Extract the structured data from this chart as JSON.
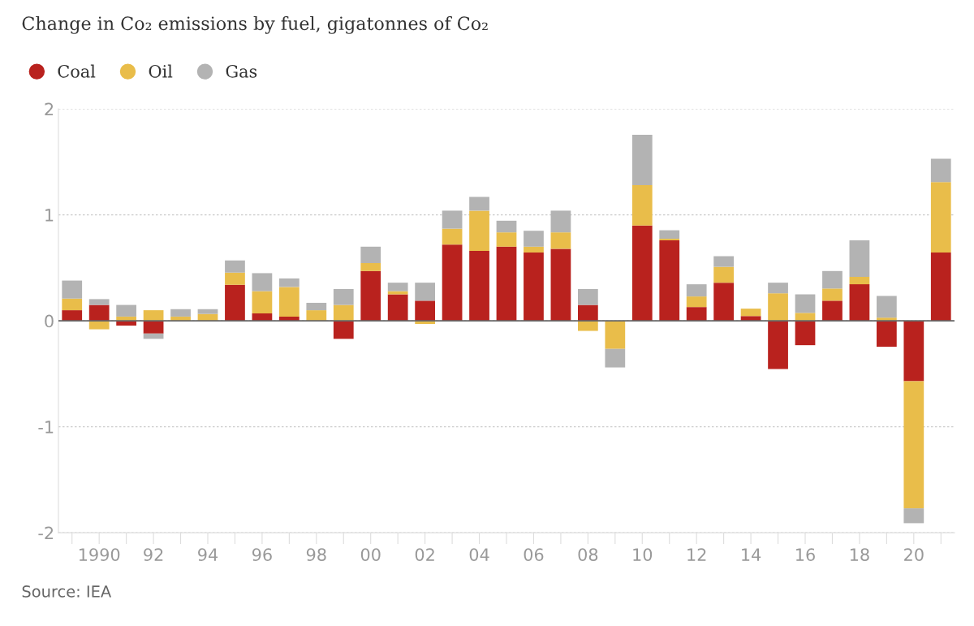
{
  "chart_data": {
    "type": "bar",
    "title": "Change in Co₂ emissions by fuel, gigatonnes of Co₂",
    "stacked": true,
    "categories": [
      null,
      "1990",
      null,
      "92",
      null,
      "94",
      null,
      "96",
      null,
      "98",
      null,
      "00",
      null,
      "02",
      null,
      "04",
      null,
      "06",
      null,
      "08",
      null,
      "10",
      null,
      "12",
      null,
      "14",
      null,
      "16",
      null,
      "18",
      null,
      "20",
      null
    ],
    "series": [
      {
        "name": "Coal",
        "color": "#b9221e",
        "values": [
          0.1,
          0.15,
          -0.045,
          -0.12,
          null,
          null,
          0.34,
          0.07,
          0.04,
          null,
          -0.17,
          0.47,
          0.25,
          0.19,
          0.72,
          0.66,
          0.7,
          0.645,
          0.68,
          0.15,
          0,
          0.9,
          0.76,
          0.13,
          0.36,
          0.045,
          -0.455,
          -0.23,
          0.19,
          0.345,
          -0.245,
          -0.57,
          0.645
        ]
      },
      {
        "name": "Oil",
        "color": "#e9bd4a",
        "values": [
          0.11,
          -0.08,
          0.04,
          0.1,
          0.04,
          0.065,
          0.115,
          0.21,
          0.28,
          0.1,
          0.15,
          0.075,
          0.03,
          -0.03,
          0.15,
          0.38,
          0.135,
          0.055,
          0.155,
          -0.095,
          -0.265,
          0.38,
          0.015,
          0.1,
          0.15,
          0.07,
          0.26,
          0.075,
          0.115,
          0.07,
          0.03,
          -1.2,
          0.665
        ]
      },
      {
        "name": "Gas",
        "color": "#b3b3b3",
        "values": [
          0.17,
          0.055,
          0.11,
          -0.05,
          0.07,
          0.045,
          0.115,
          0.17,
          0.08,
          0.07,
          0.15,
          0.155,
          0.08,
          0.17,
          0.17,
          0.13,
          0.11,
          0.15,
          0.205,
          0.15,
          -0.175,
          0.475,
          0.08,
          0.115,
          0.1,
          0,
          0.1,
          0.175,
          0.165,
          0.345,
          0.205,
          -0.14,
          0.22
        ]
      }
    ],
    "ylim": [
      -2,
      2
    ],
    "yticks": [
      -2,
      -1,
      0,
      1,
      2
    ],
    "grid": "y",
    "legend": "top left",
    "ref_lines": [
      {
        "axis": "y",
        "value": 0,
        "color": "#666666"
      }
    ],
    "annotations": [
      "Source: IEA"
    ]
  }
}
